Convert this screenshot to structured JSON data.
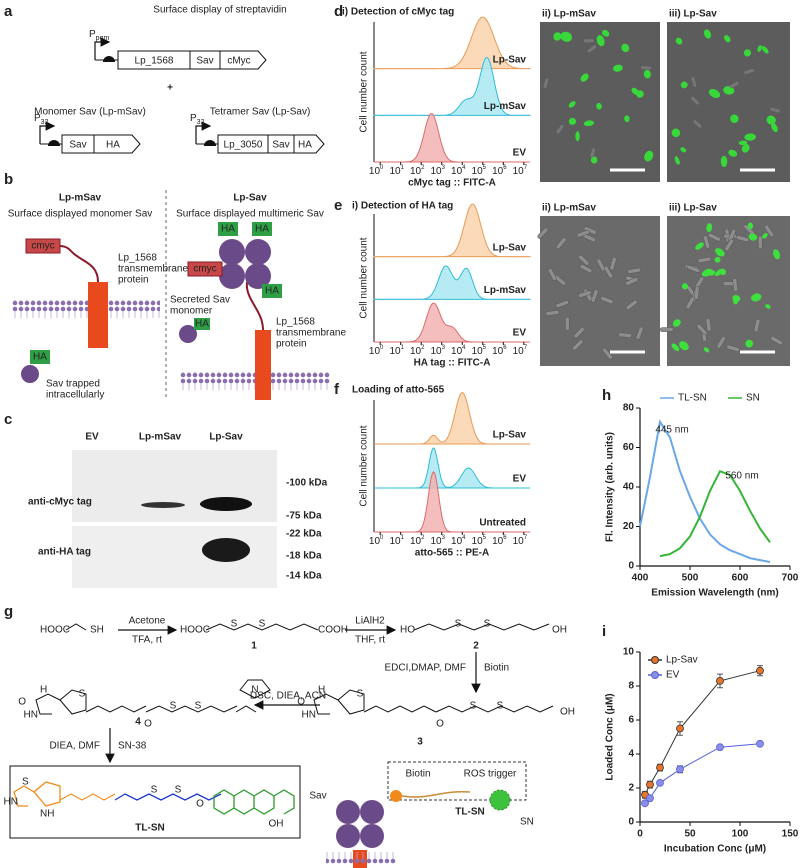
{
  "panel_labels": [
    "a",
    "b",
    "c",
    "d",
    "e",
    "f",
    "g",
    "h",
    "i"
  ],
  "a": {
    "title": "Surface display of streptavidin",
    "p": "P",
    "pgm": "pgm",
    "p32": "32",
    "genes1": [
      "Lp_1568",
      "Sav",
      "cMyc"
    ],
    "plus": "+",
    "mono_title": "Monomer Sav (Lp-mSav)",
    "tetra_title": "Tetramer Sav (Lp-Sav)",
    "genes2": [
      "Sav",
      "HA"
    ],
    "genes3": [
      "Lp_3050",
      "Sav",
      "HA"
    ]
  },
  "b": {
    "left_title": "Lp-mSav",
    "left_sub": "Surface displayed monomer Sav",
    "right_title": "Lp-Sav",
    "right_sub": "Surface displayed multimeric Sav",
    "cmyc": "cmyc",
    "ha": "HA",
    "tm_protein": [
      "Lp_1568",
      "transmembrane",
      "protein"
    ],
    "trapped": [
      "Sav trapped",
      "intracellularly"
    ],
    "secreted": [
      "Secreted Sav",
      "monomer"
    ]
  },
  "c": {
    "lanes": [
      "EV",
      "Lp-mSav",
      "Lp-Sav"
    ],
    "rows": [
      "anti-cMyc tag",
      "anti-HA tag"
    ],
    "markers": [
      "-100 kDa",
      "-75 kDa",
      "-22 kDa",
      "-18 kDa",
      "-14 kDa"
    ]
  },
  "cell_count": "Cell number count",
  "log_base": "10",
  "log_exponents": [
    "0",
    "1",
    "2",
    "3",
    "4",
    "5",
    "6",
    "7"
  ],
  "d": {
    "sub": [
      "i) Detection of cMyc tag",
      "ii) Lp-mSav",
      "iii) Lp-Sav"
    ],
    "labels": [
      "Lp-Sav",
      "Lp-mSav",
      "EV"
    ],
    "xlabel": "cMyc tag :: FITC-A"
  },
  "e": {
    "sub": [
      "i)  Detection of HA tag",
      "ii) Lp-mSav",
      "iii) Lp-Sav"
    ],
    "labels": [
      "Lp-Sav",
      "Lp-mSav",
      "EV"
    ],
    "xlabel": "HA tag :: FITC-A"
  },
  "f": {
    "title": "Loading of atto-565",
    "labels": [
      "Lp-Sav",
      "EV",
      "Untreated"
    ],
    "xlabel": "atto-565 :: PE-A"
  },
  "g": {
    "sm": [
      "HOOC",
      "SH"
    ],
    "r1": [
      "Acetone",
      "TFA, rt"
    ],
    "c1": [
      "HOOC",
      "COOH",
      "1"
    ],
    "r2": [
      "LiAlH2",
      "THF, rt"
    ],
    "c2": [
      "HO",
      "OH",
      "2"
    ],
    "r3": [
      "EDCI,DMAP, DMF",
      "Biotin"
    ],
    "c3": "3",
    "r4": "DSC, DIEA, ACN",
    "c4": "4",
    "r5": [
      "DIEA, DMF",
      "SN-38"
    ],
    "atoms": {
      "S": "S",
      "O": "O",
      "N": "N",
      "H": "H",
      "HN": "HN",
      "NH": "NH",
      "OH": "OH"
    },
    "product": "TL-SN",
    "diagram": {
      "sav": "Sav",
      "biotin": "Biotin",
      "ros": "ROS trigger",
      "name": "TL-SN",
      "sn": "SN"
    }
  },
  "chart_data": [
    {
      "type": "line",
      "legend": "top",
      "xlabel": "Emission Wavelength (nm)",
      "ylabel": "Fl. Intensity (arb. units)",
      "annotations": [
        "445 nm",
        "560 nm"
      ],
      "x": [
        400,
        420,
        440,
        460,
        480,
        500,
        520,
        540,
        560,
        580,
        600,
        620,
        640,
        660
      ],
      "series": [
        {
          "name": "TL-SN",
          "color": "#6aa7e8",
          "values": [
            20,
            45,
            73,
            65,
            48,
            35,
            24,
            16,
            11,
            8,
            6,
            4,
            3,
            2
          ]
        },
        {
          "name": "SN",
          "color": "#35b536",
          "values": [
            null,
            null,
            5,
            6,
            9,
            15,
            25,
            38,
            48,
            46,
            38,
            28,
            19,
            12
          ]
        }
      ],
      "xlim": [
        400,
        700
      ],
      "xticks": [
        400,
        500,
        600,
        700
      ],
      "ylim": [
        0,
        80
      ],
      "yticks": [
        0,
        20,
        40,
        60,
        80
      ]
    },
    {
      "type": "line",
      "legend": "top-left",
      "markers": true,
      "xlabel": "Incubation Conc (μM)",
      "ylabel": "Loaded Conc (μM)",
      "x": [
        5,
        10,
        20,
        40,
        80,
        120
      ],
      "series": [
        {
          "name": "Lp-Sav",
          "color": "#e8732a",
          "line_color": "#333333",
          "values": [
            1.6,
            2.2,
            3.2,
            5.5,
            8.3,
            8.9
          ],
          "errors": [
            0.2,
            0.2,
            0.2,
            0.4,
            0.4,
            0.3
          ]
        },
        {
          "name": "EV",
          "color": "#8a8ee8",
          "line_color": "#5561d8",
          "values": [
            1.1,
            1.4,
            2.3,
            3.1,
            4.4,
            4.6
          ],
          "errors": [
            0.1,
            0.1,
            0.1,
            0.2,
            0.1,
            0.1
          ]
        }
      ],
      "xlim": [
        0,
        150
      ],
      "xticks": [
        0,
        50,
        100,
        150
      ],
      "ylim": [
        0,
        10
      ],
      "yticks": [
        0,
        2,
        4,
        6,
        8,
        10
      ]
    }
  ]
}
